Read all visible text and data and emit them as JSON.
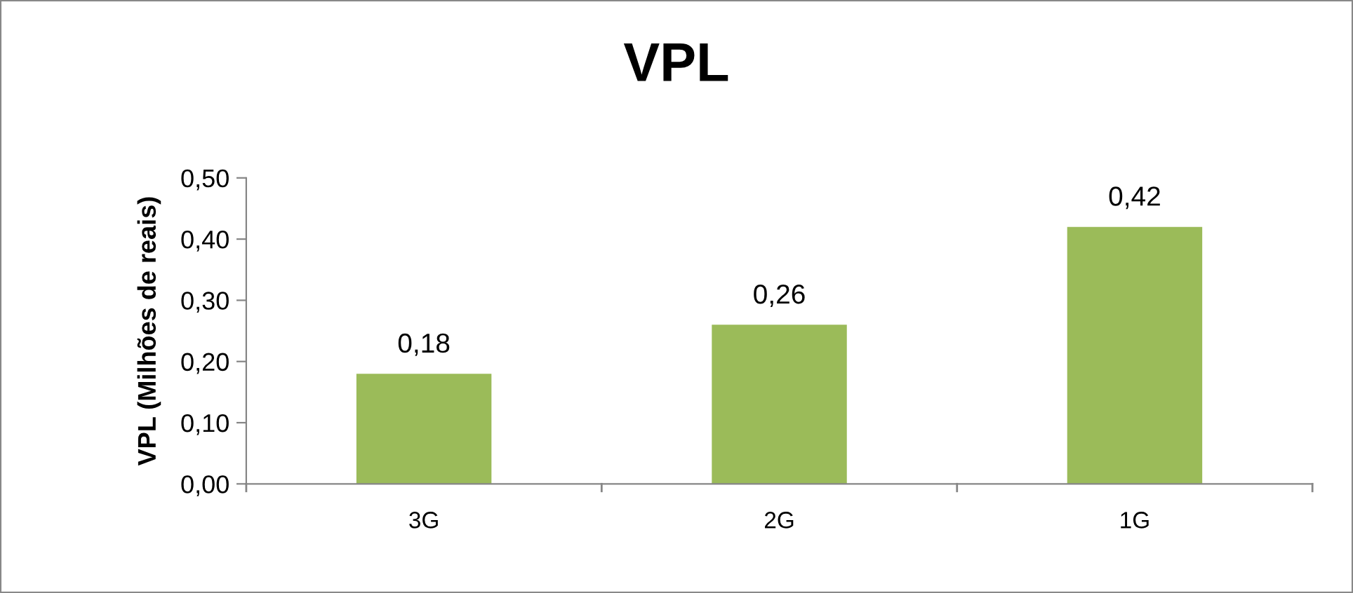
{
  "chart_data": {
    "type": "bar",
    "title": "VPL",
    "ylabel": "VPL (Milhões de reais)",
    "categories": [
      "3G",
      "2G",
      "1G"
    ],
    "values": [
      0.18,
      0.26,
      0.42
    ],
    "color": "#9bbb59",
    "value_labels": [
      "0,18",
      "0,26",
      "0,42"
    ],
    "ylim": [
      0,
      0.5
    ],
    "yticks": [
      {
        "value": 0,
        "label": "0,00"
      },
      {
        "value": 0.1,
        "label": "0,10"
      },
      {
        "value": 0.2,
        "label": "0,20"
      },
      {
        "value": 0.3,
        "label": "0,30"
      },
      {
        "value": 0.4,
        "label": "0,40"
      },
      {
        "value": 0.5,
        "label": "0,50"
      }
    ],
    "grid": false,
    "legend": false
  }
}
